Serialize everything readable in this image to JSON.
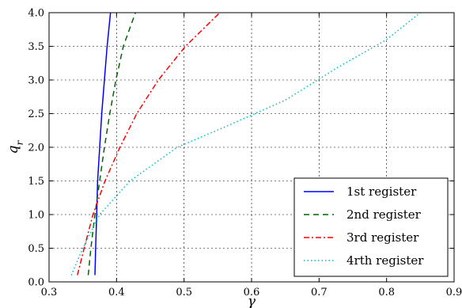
{
  "chart_data": {
    "type": "line",
    "title": "",
    "xlabel": "γ",
    "ylabel": "q_r",
    "xlim": [
      0.3,
      0.9
    ],
    "ylim": [
      0.0,
      4.0
    ],
    "x_ticks": [
      0.3,
      0.4,
      0.5,
      0.6,
      0.7,
      0.8,
      0.9
    ],
    "x_tick_labels": [
      "0.3",
      "0.4",
      "0.5",
      "0.6",
      "0.7",
      "0.8",
      "0.9"
    ],
    "y_ticks": [
      0.0,
      0.5,
      1.0,
      1.5,
      2.0,
      2.5,
      3.0,
      3.5,
      4.0
    ],
    "y_tick_labels": [
      "0.0",
      "0.5",
      "1.0",
      "1.5",
      "2.0",
      "2.5",
      "3.0",
      "3.5",
      "4.0"
    ],
    "grid": true,
    "legend_position": "bottom-right",
    "series": [
      {
        "name": "1st register",
        "color": "#0000ff",
        "style": "solid",
        "points": [
          [
            0.368,
            0.1
          ],
          [
            0.369,
            0.5
          ],
          [
            0.3705,
            1.0
          ],
          [
            0.372,
            1.5
          ],
          [
            0.375,
            2.0
          ],
          [
            0.378,
            2.5
          ],
          [
            0.382,
            3.0
          ],
          [
            0.386,
            3.5
          ],
          [
            0.391,
            4.0
          ]
        ]
      },
      {
        "name": "2nd register",
        "color": "#006400",
        "style": "dashed",
        "points": [
          [
            0.358,
            0.1
          ],
          [
            0.362,
            0.5
          ],
          [
            0.368,
            1.0
          ],
          [
            0.375,
            1.5
          ],
          [
            0.382,
            2.0
          ],
          [
            0.39,
            2.5
          ],
          [
            0.399,
            3.0
          ],
          [
            0.41,
            3.5
          ],
          [
            0.428,
            4.0
          ]
        ]
      },
      {
        "name": "3rd register",
        "color": "#ff0000",
        "style": "dashdot",
        "points": [
          [
            0.342,
            0.1
          ],
          [
            0.352,
            0.5
          ],
          [
            0.365,
            1.0
          ],
          [
            0.383,
            1.5
          ],
          [
            0.405,
            2.0
          ],
          [
            0.43,
            2.5
          ],
          [
            0.462,
            3.0
          ],
          [
            0.502,
            3.5
          ],
          [
            0.553,
            4.0
          ]
        ]
      },
      {
        "name": "4rth register",
        "color": "#00bfbf",
        "style": "dotted",
        "points": [
          [
            0.333,
            0.1
          ],
          [
            0.35,
            0.5
          ],
          [
            0.375,
            1.0
          ],
          [
            0.42,
            1.5
          ],
          [
            0.49,
            2.0
          ],
          [
            0.56,
            2.3
          ],
          [
            0.65,
            2.7
          ],
          [
            0.73,
            3.2
          ],
          [
            0.8,
            3.6
          ],
          [
            0.85,
            4.0
          ]
        ]
      }
    ]
  }
}
